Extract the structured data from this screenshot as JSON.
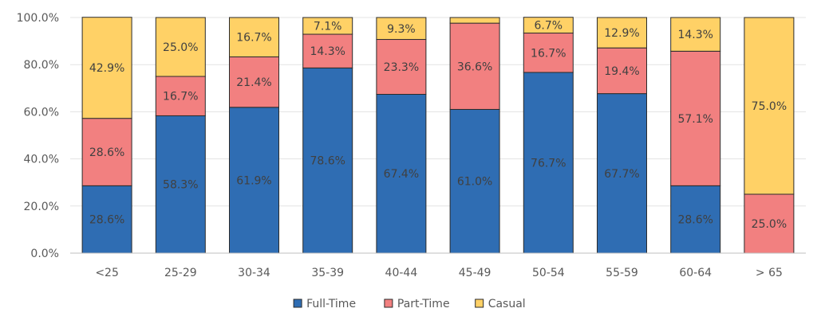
{
  "chart_data": {
    "type": "bar",
    "stacked": true,
    "categories": [
      "<25",
      "25-29",
      "30-34",
      "35-39",
      "40-44",
      "45-49",
      "50-54",
      "55-59",
      "60-64",
      "> 65"
    ],
    "series": [
      {
        "name": "Full-Time",
        "color": "#2f6db3",
        "values": [
          28.6,
          58.3,
          61.9,
          78.6,
          67.4,
          61.0,
          76.7,
          67.7,
          28.6,
          0.0
        ],
        "labels": [
          "28.6%",
          "58.3%",
          "61.9%",
          "78.6%",
          "67.4%",
          "61.0%",
          "76.7%",
          "67.7%",
          "28.6%",
          ""
        ]
      },
      {
        "name": "Part-Time",
        "color": "#f28080",
        "values": [
          28.6,
          16.7,
          21.4,
          14.3,
          23.3,
          36.6,
          16.7,
          19.4,
          57.1,
          25.0
        ],
        "labels": [
          "28.6%",
          "16.7%",
          "21.4%",
          "14.3%",
          "23.3%",
          "36.6%",
          "16.7%",
          "19.4%",
          "57.1%",
          "25.0%"
        ]
      },
      {
        "name": "Casual",
        "color": "#ffd166",
        "values": [
          42.9,
          25.0,
          16.7,
          7.1,
          9.3,
          2.4,
          6.7,
          12.9,
          14.3,
          75.0
        ],
        "labels": [
          "42.9%",
          "25.0%",
          "16.7%",
          "7.1%",
          "9.3%",
          "",
          "6.7%",
          "12.9%",
          "14.3%",
          "75.0%"
        ]
      }
    ],
    "yticks": [
      "0.0%",
      "20.0%",
      "40.0%",
      "60.0%",
      "80.0%",
      "100.0%"
    ],
    "ylim": [
      0,
      100
    ],
    "grid": true,
    "legend": "bottom-center"
  }
}
